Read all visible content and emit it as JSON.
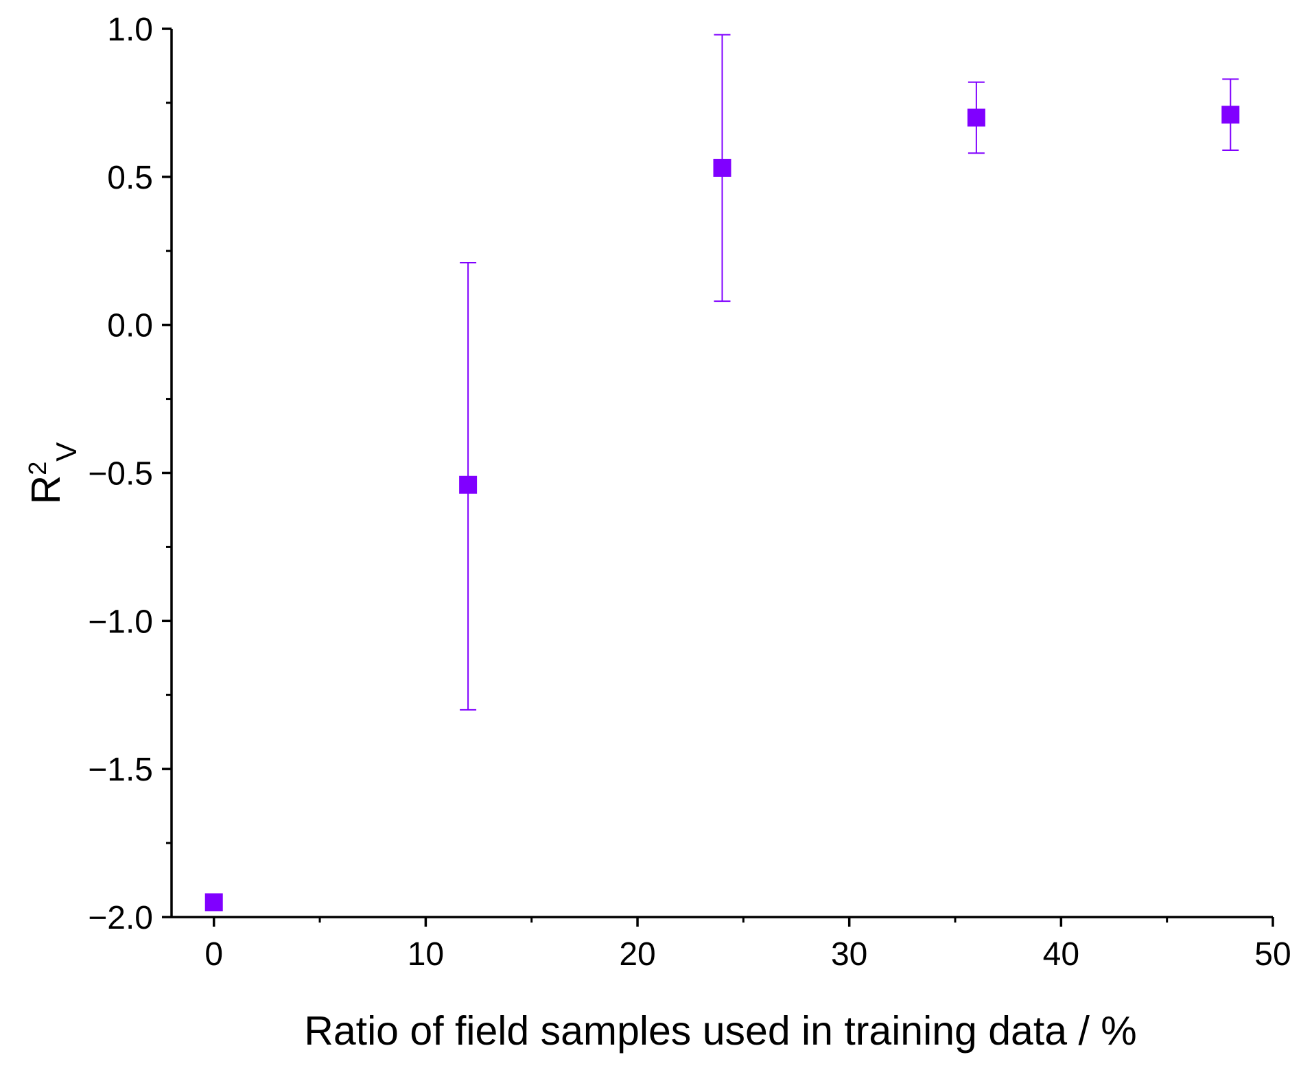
{
  "chart_data": {
    "type": "scatter",
    "title": "",
    "xlabel": "Ratio of field samples used in training data / %",
    "ylabel": {
      "base": "R",
      "superscript": "2",
      "subscript": "V"
    },
    "xlim": [
      -2,
      50
    ],
    "ylim": [
      -2.0,
      1.0
    ],
    "xticks": [
      0,
      10,
      20,
      30,
      40,
      50
    ],
    "xtick_labels": [
      "0",
      "10",
      "20",
      "30",
      "40",
      "50"
    ],
    "xminor": [
      5,
      15,
      25,
      35,
      45
    ],
    "yticks": [
      -2.0,
      -1.5,
      -1.0,
      -0.5,
      0.0,
      0.5,
      1.0
    ],
    "ytick_labels": [
      "−2.0",
      "−1.5",
      "−1.0",
      "−0.5",
      "0.0",
      "0.5",
      "1.0"
    ],
    "yminor": [
      -1.75,
      -1.25,
      -0.75,
      -0.25,
      0.25,
      0.75
    ],
    "grid": false,
    "marker": "square",
    "color": "#8000ff",
    "series": [
      {
        "name": "R2V",
        "x": [
          0,
          12,
          24,
          36,
          48
        ],
        "y": [
          -1.95,
          -0.54,
          0.53,
          0.7,
          0.71
        ],
        "err_low": [
          null,
          -1.3,
          0.08,
          0.58,
          0.59
        ],
        "err_high": [
          null,
          0.21,
          0.98,
          0.82,
          0.83
        ]
      }
    ]
  }
}
